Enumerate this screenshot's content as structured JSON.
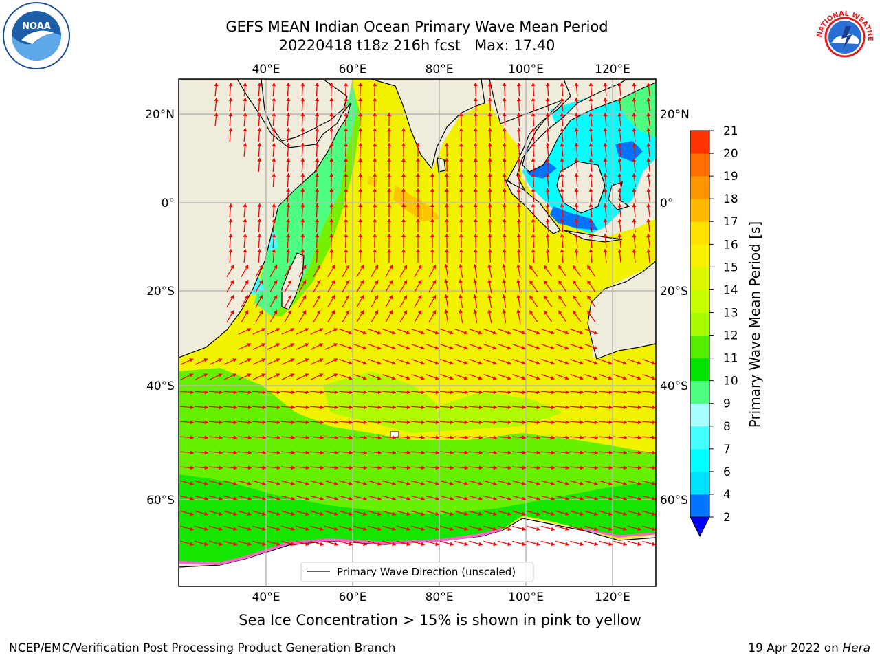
{
  "header": {
    "title_line1": "GEFS MEAN Indian Ocean Primary Wave Mean Period",
    "title_line2": "20220418 t18z 216h fcst   Max: 17.40"
  },
  "map": {
    "lon_ticks": [
      "40°E",
      "60°E",
      "80°E",
      "100°E",
      "120°E"
    ],
    "lat_ticks_left": [
      "20°N",
      "0°",
      "20°S",
      "40°S",
      "60°S"
    ],
    "lat_ticks_right": [
      "20°N",
      "0°",
      "20°S",
      "40°S",
      "60°S"
    ],
    "legend_label": "Primary Wave Direction (unscaled)",
    "colors": {
      "land": "#efecdc",
      "ocean_main": "#f2f200",
      "arrow": "#ff0000",
      "grid": "#b8b8b8"
    }
  },
  "colorbar": {
    "label": "Primary Wave Mean Period [s]",
    "ticks": [
      "2",
      "4",
      "6",
      "7",
      "8",
      "9",
      "10",
      "11",
      "12",
      "13",
      "14",
      "15",
      "16",
      "17",
      "18",
      "19",
      "20",
      "21"
    ],
    "colors": [
      "#0073ff",
      "#00e1ff",
      "#00ffff",
      "#44ffff",
      "#a8ffff",
      "#4cff80",
      "#00e400",
      "#55f000",
      "#a6fb00",
      "#c8ff00",
      "#dcf800",
      "#f7f000",
      "#ffe300",
      "#ffb900",
      "#ff9600",
      "#ff6e00",
      "#ff3300"
    ],
    "extend_color": "#0000ff"
  },
  "footer": {
    "sea_ice_note": "Sea Ice Concentration > 15% is shown in pink to yellow",
    "credit_left": "NCEP/EMC/Verification Post Processing Product Generation Branch",
    "date": "19 Apr 2022 on",
    "machine": "Hera"
  },
  "logos": {
    "noaa_text": "NOAA",
    "nws_text": "NATIONAL WEATHER SERVICE"
  }
}
